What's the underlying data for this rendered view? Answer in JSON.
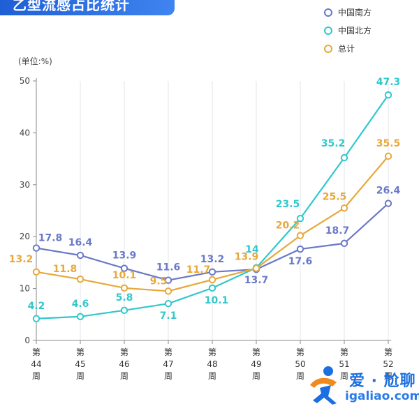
{
  "header": {
    "title": "乙型流感占比统计"
  },
  "chart_data": {
    "type": "line",
    "unit_label": "(单位:%)",
    "categories": [
      [
        "第",
        "44",
        "周"
      ],
      [
        "第",
        "45",
        "周"
      ],
      [
        "第",
        "46",
        "周"
      ],
      [
        "第",
        "47",
        "周"
      ],
      [
        "第",
        "48",
        "周"
      ],
      [
        "第",
        "49",
        "周"
      ],
      [
        "第",
        "50",
        "周"
      ],
      [
        "第",
        "51",
        "周"
      ],
      [
        "第",
        "52",
        "周"
      ]
    ],
    "ylim": [
      0,
      50
    ],
    "yticks": [
      0,
      10,
      20,
      30,
      40,
      50
    ],
    "grid": "vertical",
    "legend_position": "top-right",
    "series": [
      {
        "name": "中国南方",
        "color": "#6a78c8",
        "values": [
          17.8,
          16.4,
          13.9,
          11.6,
          13.2,
          13.7,
          17.6,
          18.7,
          26.4
        ],
        "labels": [
          "17.8",
          "16.4",
          "13.9",
          "11.6",
          "13.2",
          "13.7",
          "17.6",
          "18.7",
          "26.4"
        ]
      },
      {
        "name": "中国北方",
        "color": "#30c8cc",
        "values": [
          4.2,
          4.6,
          5.8,
          7.1,
          10.1,
          14.0,
          23.5,
          35.2,
          47.3
        ],
        "labels": [
          "4.2",
          "4.6",
          "5.8",
          "7.1",
          "10.1",
          "14",
          "23.5",
          "35.2",
          "47.3"
        ]
      },
      {
        "name": "总计",
        "color": "#e8a83a",
        "values": [
          13.2,
          11.8,
          10.1,
          9.5,
          11.7,
          13.9,
          20.2,
          25.5,
          35.5
        ],
        "labels": [
          "13.2",
          "11.8",
          "10.1",
          "9.5",
          "11.7",
          "13.9",
          "20.2",
          "25.5",
          "35.5"
        ]
      }
    ]
  },
  "watermark": {
    "brand": "爱 · 尬聊",
    "url": "igaliao.com"
  }
}
